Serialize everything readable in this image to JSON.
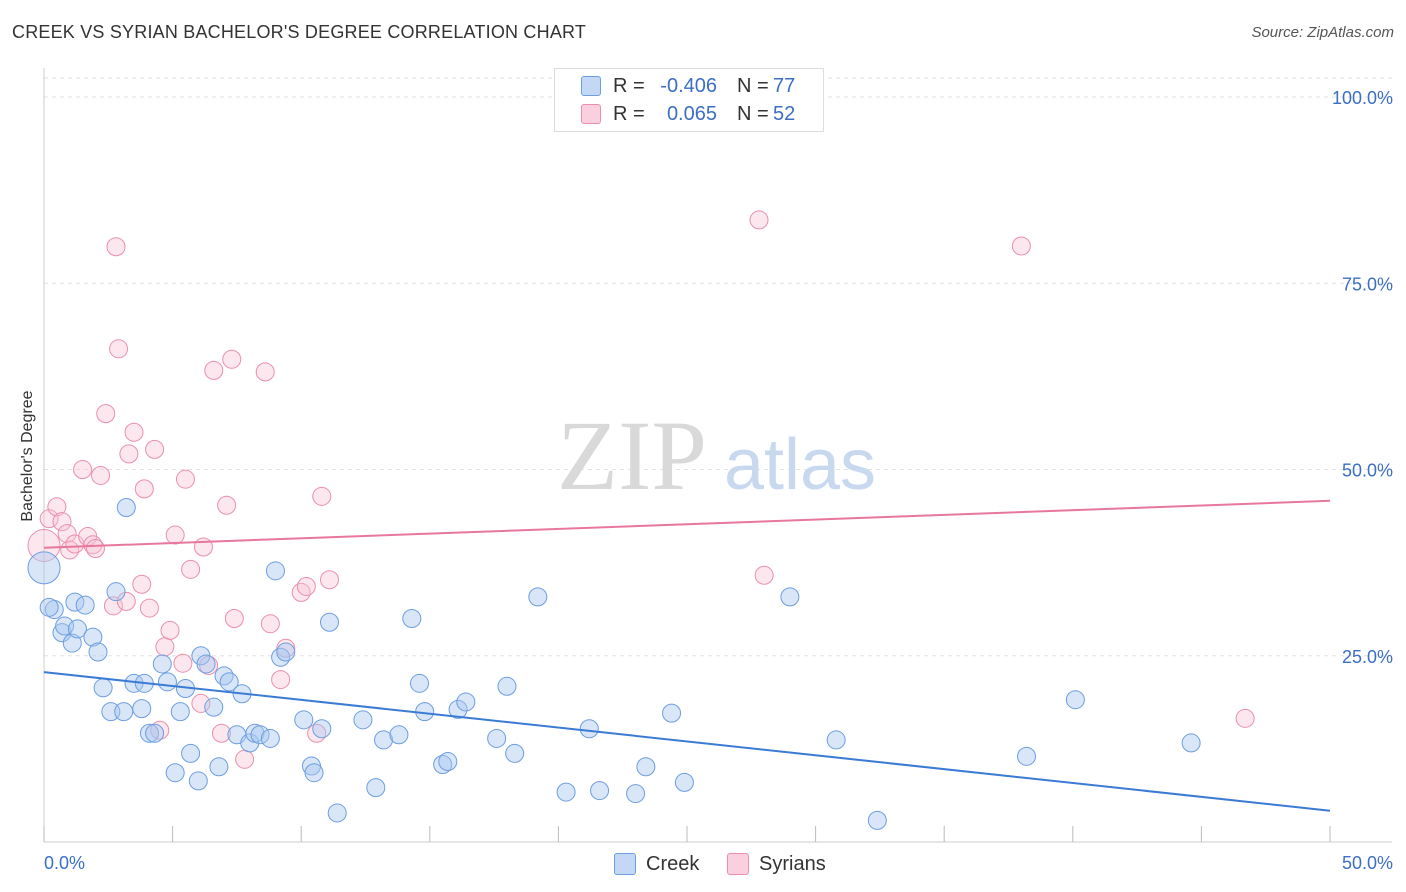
{
  "header": {
    "title": "CREEK VS SYRIAN BACHELOR'S DEGREE CORRELATION CHART",
    "source": "Source: ZipAtlas.com"
  },
  "watermark": {
    "zip": "ZIP",
    "atlas": "atlas"
  },
  "legend": {
    "rows": [
      {
        "label": "R =",
        "r_value": "-0.406",
        "n_label": "N =",
        "n_value": "77",
        "color": "#a8c8f0",
        "border": "#6d9ee0"
      },
      {
        "label": "R =",
        "r_value": "0.065",
        "n_label": "N =",
        "n_value": "52",
        "color": "#f8c4d4",
        "border": "#eb8fac"
      }
    ],
    "bottom": [
      {
        "name": "Creek",
        "color": "#a8c8f0",
        "border": "#6d9ee0"
      },
      {
        "name": "Syrians",
        "color": "#f8c4d4",
        "border": "#eb8fac"
      }
    ]
  },
  "chart_data": {
    "type": "scatter",
    "title": "CREEK VS SYRIAN BACHELOR'S DEGREE CORRELATION CHART",
    "xlabel": "",
    "ylabel": "Bachelor's Degree",
    "xlim": [
      0,
      50
    ],
    "ylim": [
      0,
      100
    ],
    "x_tick_labels": [
      "0.0%",
      "50.0%"
    ],
    "y_tick_values": [
      25,
      50,
      75,
      100
    ],
    "y_tick_labels": [
      "25.0%",
      "50.0%",
      "75.0%",
      "100.0%"
    ],
    "grid": "horizontal dashed",
    "legend_position": "top-center",
    "colors": {
      "creek": "#3a7bd5",
      "syrians": "#e8779d"
    },
    "series": [
      {
        "name": "Creek",
        "color": "#3a7bd5",
        "trend": {
          "x": [
            0,
            50
          ],
          "y": [
            22.8,
            4.2
          ]
        },
        "points": [
          [
            0.0,
            36.8
          ],
          [
            0.4,
            31.2
          ],
          [
            0.7,
            28.1
          ],
          [
            0.8,
            29.0
          ],
          [
            1.1,
            26.7
          ],
          [
            1.2,
            32.2
          ],
          [
            1.3,
            28.6
          ],
          [
            1.6,
            31.8
          ],
          [
            1.9,
            27.5
          ],
          [
            2.1,
            25.5
          ],
          [
            2.3,
            20.7
          ],
          [
            2.6,
            17.5
          ],
          [
            2.8,
            33.6
          ],
          [
            3.1,
            17.5
          ],
          [
            3.2,
            44.9
          ],
          [
            3.5,
            21.3
          ],
          [
            3.8,
            17.9
          ],
          [
            3.9,
            21.3
          ],
          [
            4.1,
            14.6
          ],
          [
            4.3,
            14.6
          ],
          [
            4.6,
            23.9
          ],
          [
            4.8,
            21.5
          ],
          [
            5.1,
            9.3
          ],
          [
            5.3,
            17.5
          ],
          [
            5.5,
            20.6
          ],
          [
            5.7,
            11.9
          ],
          [
            6.0,
            8.2
          ],
          [
            6.1,
            25.0
          ],
          [
            6.3,
            23.9
          ],
          [
            6.6,
            18.1
          ],
          [
            6.8,
            10.1
          ],
          [
            7.0,
            22.3
          ],
          [
            7.2,
            21.5
          ],
          [
            7.5,
            14.4
          ],
          [
            7.7,
            19.9
          ],
          [
            8.0,
            13.3
          ],
          [
            8.2,
            14.6
          ],
          [
            8.4,
            14.4
          ],
          [
            8.8,
            13.9
          ],
          [
            9.2,
            24.8
          ],
          [
            9.4,
            25.5
          ],
          [
            9.0,
            36.4
          ],
          [
            10.1,
            16.4
          ],
          [
            10.4,
            10.2
          ],
          [
            10.5,
            9.3
          ],
          [
            10.8,
            15.2
          ],
          [
            11.1,
            29.5
          ],
          [
            11.4,
            3.9
          ],
          [
            12.4,
            16.4
          ],
          [
            12.9,
            7.3
          ],
          [
            13.2,
            13.7
          ],
          [
            13.8,
            14.4
          ],
          [
            14.3,
            30.0
          ],
          [
            14.6,
            21.3
          ],
          [
            14.8,
            17.5
          ],
          [
            15.5,
            10.4
          ],
          [
            15.7,
            10.8
          ],
          [
            16.1,
            17.8
          ],
          [
            16.4,
            18.8
          ],
          [
            17.6,
            13.9
          ],
          [
            18.0,
            20.9
          ],
          [
            18.3,
            11.9
          ],
          [
            19.2,
            32.9
          ],
          [
            20.3,
            6.7
          ],
          [
            21.2,
            15.2
          ],
          [
            21.6,
            6.9
          ],
          [
            23.0,
            6.5
          ],
          [
            23.4,
            10.1
          ],
          [
            24.4,
            17.3
          ],
          [
            24.9,
            8.0
          ],
          [
            29.0,
            32.9
          ],
          [
            30.8,
            13.7
          ],
          [
            32.4,
            2.9
          ],
          [
            38.2,
            11.5
          ],
          [
            40.1,
            19.1
          ],
          [
            44.6,
            13.3
          ],
          [
            0.2,
            31.5
          ]
        ]
      },
      {
        "name": "Syrians",
        "color": "#e8779d",
        "trend": {
          "x": [
            0,
            50
          ],
          "y": [
            39.5,
            45.8
          ]
        },
        "points": [
          [
            0.0,
            39.8
          ],
          [
            0.2,
            43.4
          ],
          [
            0.5,
            45.0
          ],
          [
            0.7,
            43.0
          ],
          [
            0.9,
            41.4
          ],
          [
            1.0,
            39.2
          ],
          [
            1.2,
            40.0
          ],
          [
            1.5,
            50.0
          ],
          [
            1.7,
            41.0
          ],
          [
            1.9,
            39.9
          ],
          [
            2.0,
            39.4
          ],
          [
            2.2,
            49.2
          ],
          [
            2.4,
            57.5
          ],
          [
            2.7,
            31.7
          ],
          [
            2.8,
            79.9
          ],
          [
            2.9,
            66.2
          ],
          [
            3.2,
            32.3
          ],
          [
            3.3,
            52.1
          ],
          [
            3.5,
            55.0
          ],
          [
            3.8,
            34.6
          ],
          [
            3.9,
            47.4
          ],
          [
            4.1,
            31.4
          ],
          [
            4.3,
            52.7
          ],
          [
            4.5,
            15.0
          ],
          [
            4.7,
            26.2
          ],
          [
            4.9,
            28.4
          ],
          [
            5.1,
            41.2
          ],
          [
            5.4,
            24.0
          ],
          [
            5.5,
            48.7
          ],
          [
            5.7,
            36.6
          ],
          [
            6.1,
            18.6
          ],
          [
            6.2,
            39.6
          ],
          [
            6.4,
            23.7
          ],
          [
            6.6,
            63.3
          ],
          [
            6.9,
            14.6
          ],
          [
            7.1,
            45.2
          ],
          [
            7.3,
            64.8
          ],
          [
            7.4,
            30.0
          ],
          [
            7.8,
            11.1
          ],
          [
            8.6,
            63.1
          ],
          [
            8.8,
            29.3
          ],
          [
            9.2,
            21.8
          ],
          [
            9.4,
            26.0
          ],
          [
            10.0,
            33.5
          ],
          [
            10.2,
            34.3
          ],
          [
            10.6,
            14.6
          ],
          [
            10.8,
            46.4
          ],
          [
            11.1,
            35.2
          ],
          [
            27.8,
            83.5
          ],
          [
            28.0,
            35.8
          ],
          [
            38.0,
            80.0
          ],
          [
            46.7,
            16.6
          ]
        ]
      }
    ]
  }
}
